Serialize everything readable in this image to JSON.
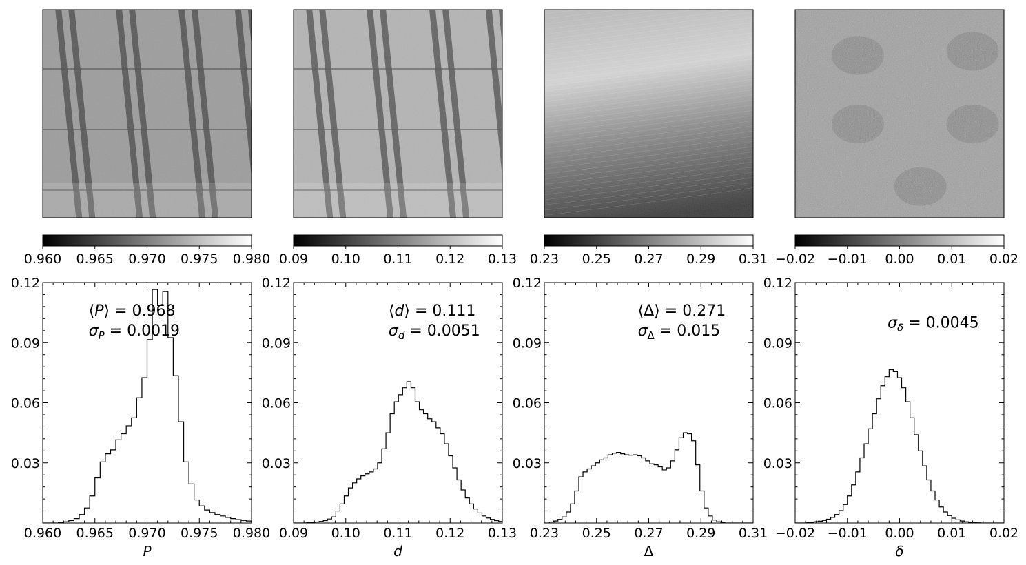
{
  "chart_data": [
    {
      "type": "histogram",
      "map_image": "grayscale map of P",
      "colorbar": {
        "colormap": "gray",
        "range": [
          0.96,
          0.98
        ],
        "ticks": [
          "0.960",
          "0.965",
          "0.970",
          "0.975",
          "0.980"
        ]
      },
      "xlabel": "P",
      "xlim": [
        0.96,
        0.98
      ],
      "ylim": [
        0,
        0.12
      ],
      "xticks": [
        {
          "v": 0.96,
          "label": "0.960"
        },
        {
          "v": 0.965,
          "label": "0.965"
        },
        {
          "v": 0.97,
          "label": "0.970"
        },
        {
          "v": 0.975,
          "label": "0.975"
        },
        {
          "v": 0.98,
          "label": "0.980"
        }
      ],
      "yticks": [
        {
          "v": 0.03,
          "label": "0.03"
        },
        {
          "v": 0.06,
          "label": "0.06"
        },
        {
          "v": 0.09,
          "label": "0.09"
        },
        {
          "v": 0.12,
          "label": "0.12"
        }
      ],
      "annotations": [
        {
          "text": "⟨P⟩ = 0.968",
          "x": 0.9644,
          "y": 0.1035,
          "anchor": "start"
        },
        {
          "text": "σP = 0.0019",
          "x": 0.9644,
          "y": 0.0935,
          "anchor": "start"
        }
      ],
      "bin_edges_start": 0.9615,
      "bin_width": 0.0005,
      "values": [
        0.0003,
        0.0006,
        0.0012,
        0.0022,
        0.0042,
        0.0075,
        0.0135,
        0.0225,
        0.0305,
        0.0345,
        0.0365,
        0.0415,
        0.0445,
        0.0485,
        0.0525,
        0.0625,
        0.0725,
        0.0915,
        0.1165,
        0.1085,
        0.1155,
        0.0925,
        0.0735,
        0.0505,
        0.0305,
        0.0195,
        0.0115,
        0.0085,
        0.0065,
        0.0052,
        0.0042,
        0.0035,
        0.0028,
        0.0022,
        0.0017,
        0.0013,
        0.001,
        0.0007,
        0.0005,
        0.0003,
        0.0002,
        0.0001,
        0.0001
      ]
    },
    {
      "type": "histogram",
      "map_image": "grayscale map of d",
      "colorbar": {
        "colormap": "gray",
        "range": [
          0.09,
          0.13
        ],
        "ticks": [
          "0.09",
          "0.10",
          "0.11",
          "0.12",
          "0.13"
        ]
      },
      "xlabel": "d",
      "xlim": [
        0.09,
        0.13
      ],
      "ylim": [
        0,
        0.12
      ],
      "xticks": [
        {
          "v": 0.09,
          "label": "0.09"
        },
        {
          "v": 0.1,
          "label": "0.10"
        },
        {
          "v": 0.11,
          "label": "0.11"
        },
        {
          "v": 0.12,
          "label": "0.12"
        },
        {
          "v": 0.13,
          "label": "0.13"
        }
      ],
      "yticks": [
        {
          "v": 0.03,
          "label": "0.03"
        },
        {
          "v": 0.06,
          "label": "0.06"
        },
        {
          "v": 0.09,
          "label": "0.09"
        },
        {
          "v": 0.12,
          "label": "0.12"
        }
      ],
      "annotations": [
        {
          "text": "⟨d⟩ = 0.111",
          "x": 0.1082,
          "y": 0.1035,
          "anchor": "start"
        },
        {
          "text": "σd = 0.0051",
          "x": 0.1082,
          "y": 0.0935,
          "anchor": "start"
        }
      ],
      "bin_edges_start": 0.0925,
      "bin_width": 0.0008,
      "values": [
        0.0002,
        0.0003,
        0.0005,
        0.0008,
        0.0012,
        0.002,
        0.003,
        0.006,
        0.0095,
        0.0135,
        0.0175,
        0.02,
        0.022,
        0.0235,
        0.0245,
        0.0255,
        0.027,
        0.03,
        0.037,
        0.045,
        0.0545,
        0.0605,
        0.064,
        0.0675,
        0.0705,
        0.0675,
        0.0605,
        0.0565,
        0.0545,
        0.052,
        0.0505,
        0.0475,
        0.0445,
        0.0395,
        0.0335,
        0.0275,
        0.0215,
        0.0165,
        0.0125,
        0.0095,
        0.007,
        0.005,
        0.0035,
        0.0025,
        0.0018,
        0.0012,
        0.0008,
        0.0005,
        0.0003
      ]
    },
    {
      "type": "histogram",
      "map_image": "grayscale map of Δ",
      "colorbar": {
        "colormap": "gray",
        "range": [
          0.23,
          0.31
        ],
        "ticks": [
          "0.23",
          "0.25",
          "0.27",
          "0.29",
          "0.31"
        ]
      },
      "xlabel": "Δ",
      "xlim": [
        0.23,
        0.31
      ],
      "ylim": [
        0,
        0.12
      ],
      "xticks": [
        {
          "v": 0.23,
          "label": "0.23"
        },
        {
          "v": 0.25,
          "label": "0.25"
        },
        {
          "v": 0.27,
          "label": "0.27"
        },
        {
          "v": 0.29,
          "label": "0.29"
        },
        {
          "v": 0.31,
          "label": "0.31"
        }
      ],
      "yticks": [
        {
          "v": 0.03,
          "label": "0.03"
        },
        {
          "v": 0.06,
          "label": "0.06"
        },
        {
          "v": 0.09,
          "label": "0.09"
        },
        {
          "v": 0.12,
          "label": "0.12"
        }
      ],
      "annotations": [
        {
          "text": "⟨Δ⟩ = 0.271",
          "x": 0.2658,
          "y": 0.1035,
          "anchor": "start"
        },
        {
          "text": "σΔ = 0.015",
          "x": 0.2658,
          "y": 0.0935,
          "anchor": "start"
        }
      ],
      "bin_edges_start": 0.232,
      "bin_width": 0.0016,
      "values": [
        0.0005,
        0.001,
        0.0018,
        0.003,
        0.0055,
        0.0095,
        0.016,
        0.023,
        0.0255,
        0.027,
        0.0285,
        0.03,
        0.0315,
        0.0325,
        0.034,
        0.0348,
        0.0352,
        0.0345,
        0.034,
        0.0338,
        0.034,
        0.0335,
        0.0325,
        0.031,
        0.0295,
        0.029,
        0.028,
        0.0265,
        0.0275,
        0.031,
        0.0365,
        0.0425,
        0.045,
        0.0445,
        0.041,
        0.029,
        0.016,
        0.0075,
        0.0035,
        0.0015,
        0.0006,
        0.0002
      ]
    },
    {
      "type": "histogram",
      "map_image": "grayscale map of δ",
      "colorbar": {
        "colormap": "gray",
        "range": [
          -0.02,
          0.02
        ],
        "ticks": [
          "−0.02",
          "−0.01",
          "0.00",
          "0.01",
          "0.02"
        ]
      },
      "xlabel": "δ",
      "xlim": [
        -0.02,
        0.02
      ],
      "ylim": [
        0,
        0.12
      ],
      "xticks": [
        {
          "v": -0.02,
          "label": "−0.02"
        },
        {
          "v": -0.01,
          "label": "−0.01"
        },
        {
          "v": 0.0,
          "label": "0.00"
        },
        {
          "v": 0.01,
          "label": "0.01"
        },
        {
          "v": 0.02,
          "label": "0.02"
        }
      ],
      "yticks": [
        {
          "v": 0.03,
          "label": "0.03"
        },
        {
          "v": 0.06,
          "label": "0.06"
        },
        {
          "v": 0.09,
          "label": "0.09"
        },
        {
          "v": 0.12,
          "label": "0.12"
        }
      ],
      "annotations": [
        {
          "text": "σδ = 0.0045",
          "x": -0.0023,
          "y": 0.0975,
          "anchor": "start"
        }
      ],
      "bin_edges_start": -0.018,
      "bin_width": 0.0008,
      "values": [
        0.0002,
        0.0004,
        0.0006,
        0.0009,
        0.0013,
        0.0019,
        0.0028,
        0.0042,
        0.0062,
        0.0092,
        0.0135,
        0.019,
        0.0255,
        0.0325,
        0.0395,
        0.047,
        0.0545,
        0.062,
        0.0685,
        0.073,
        0.0765,
        0.0755,
        0.0725,
        0.0675,
        0.0605,
        0.0525,
        0.044,
        0.036,
        0.0285,
        0.0215,
        0.016,
        0.0115,
        0.008,
        0.0055,
        0.0037,
        0.0024,
        0.0016,
        0.001,
        0.0006,
        0.0004,
        0.0002,
        0.0001
      ]
    }
  ]
}
